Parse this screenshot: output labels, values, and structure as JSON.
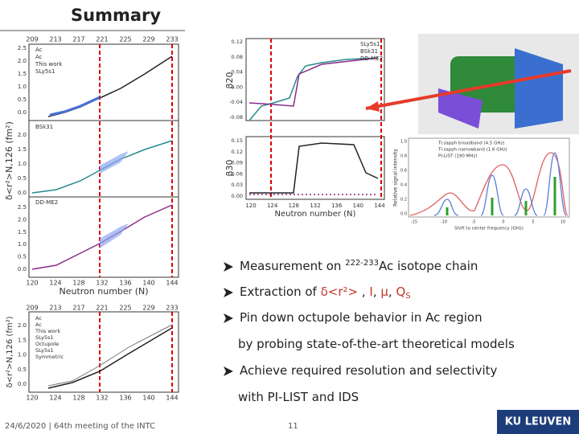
{
  "header": {
    "title": "Summary"
  },
  "figure_left_top": {
    "top_ticks": [
      "209",
      "213",
      "217",
      "221",
      "225",
      "229",
      "233"
    ],
    "bottom_ticks": [
      "120",
      "124",
      "128",
      "132",
      "136",
      "140",
      "144"
    ],
    "x_label": "Neutron number (N)",
    "y_label": "δ<r²>N,126 (fm²)",
    "panels": [
      {
        "ticks": [
          "2.5",
          "2.0",
          "1.5",
          "1.0",
          "0.5",
          "0.0"
        ],
        "legend": [
          "Ac",
          "Ac",
          "This work",
          "SLy5s1"
        ]
      },
      {
        "ticks": [
          "2.0",
          "1.5",
          "1.0",
          "0.5",
          "0.0"
        ],
        "legend": [
          "BSk31"
        ]
      },
      {
        "ticks": [
          "2.5",
          "2.0",
          "1.5",
          "1.0",
          "0.5",
          "0.0"
        ],
        "legend": [
          "DD-ME2"
        ]
      }
    ]
  },
  "figure_left_bottom": {
    "top_ticks": [
      "209",
      "213",
      "217",
      "221",
      "225",
      "229",
      "233"
    ],
    "bottom_ticks": [
      "120",
      "124",
      "128",
      "132",
      "136",
      "140",
      "144"
    ],
    "x_label": "Neutron number (N)",
    "y_label": "δ<r²>N,126 (fm²)",
    "ticks": [
      "2.0",
      "1.5",
      "1.0",
      "0.5",
      "0.0"
    ],
    "legend": [
      "Ac",
      "Ac",
      "This work",
      "SLy5s1",
      "Octupole",
      "SLy5s1",
      "Symmetric"
    ]
  },
  "figure_middle": {
    "legend": [
      "SLy5s1",
      "BSk31",
      "DD-ME2"
    ],
    "upper_label": "β20",
    "upper_ticks": [
      "0.12",
      "0.08",
      "0.04",
      "0.00",
      "-0.04",
      "-0.08"
    ],
    "lower_label": "β30",
    "lower_ticks": [
      "0.15",
      "0.12",
      "0.09",
      "0.06",
      "0.03",
      "0.00"
    ],
    "bottom_ticks": [
      "120",
      "124",
      "128",
      "132",
      "136",
      "140",
      "144"
    ],
    "x_label": "Neutron number (N)"
  },
  "figure_right": {
    "legend": [
      "Ti:sapph broadband (4.5 GHz)",
      "Ti:sapph narrowband (1.6 GHz)",
      "PI-LIST (190 MHz)"
    ],
    "y_label": "Relative signal intensity",
    "y_ticks": [
      "1.0",
      "0.8",
      "0.6",
      "0.4",
      "0.2",
      "0.0"
    ],
    "x_ticks": [
      "-15",
      "-10",
      "-5",
      "0",
      "5",
      "10"
    ],
    "x_label": "Shift to center frequency (GHz)"
  },
  "bullets": [
    {
      "a": "Measurement on ",
      "sup": "222-233",
      "b": "Ac isotope chain"
    },
    {
      "a": "Extraction of  ",
      "r": "δ<r²>",
      "c1": " , ",
      "i": "I",
      "c2": ", ",
      "mu": "μ",
      "c3": ", ",
      "q": "Q",
      "sub": "S"
    },
    {
      "a": "Pin down octupole behavior in Ac region",
      "cont": "by probing state-of-the-art theoretical models"
    },
    {
      "a": "Achieve required resolution and selectivity",
      "cont": "with PI-LIST and IDS"
    }
  ],
  "footer": {
    "left": "24/6/2020 | 64th meeting of the INTC",
    "page": "11",
    "logo": "KU LEUVEN"
  }
}
